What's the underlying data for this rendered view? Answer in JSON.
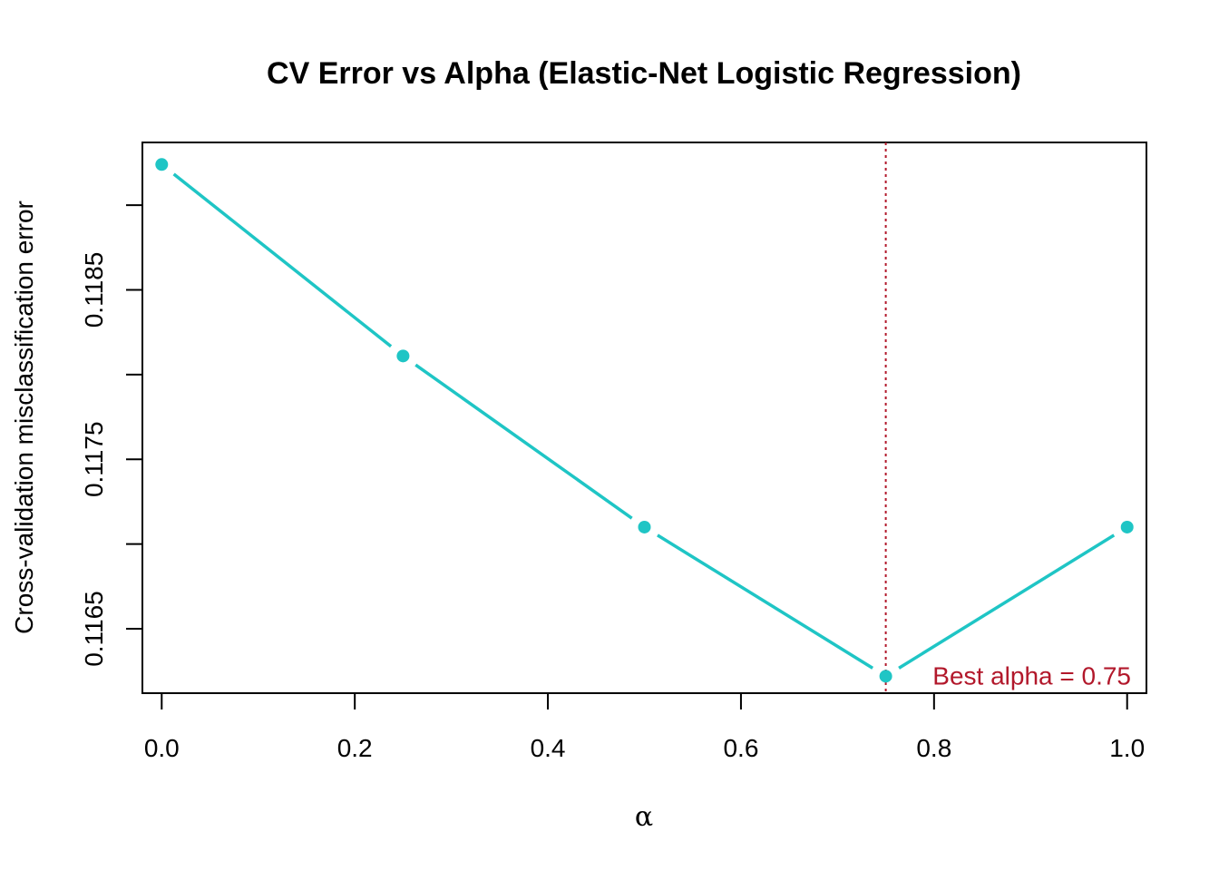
{
  "chart_data": {
    "type": "line",
    "title": "CV Error vs Alpha (Elastic-Net Logistic Regression)",
    "xlabel": "α",
    "ylabel": "Cross-validation misclassification error",
    "x": [
      0.0,
      0.25,
      0.5,
      0.75,
      1.0
    ],
    "series": [
      {
        "values": [
          0.11924,
          0.11811,
          0.1171,
          0.11622,
          0.1171
        ],
        "color": "#1fc5c5"
      }
    ],
    "xlim": [
      -0.02,
      1.02
    ],
    "ylim": [
      0.11612,
      0.11937
    ],
    "x_ticks": [
      0.0,
      0.2,
      0.4,
      0.6,
      0.8,
      1.0
    ],
    "x_tick_labels": [
      "0.0",
      "0.2",
      "0.4",
      "0.6",
      "0.8",
      "1.0"
    ],
    "y_ticks": [
      0.1165,
      0.117,
      0.1175,
      0.118,
      0.1185,
      0.119
    ],
    "y_tick_labels": [
      "0.1165",
      "",
      "0.1175",
      "",
      "0.1185",
      ""
    ],
    "best_alpha": 0.75,
    "vline_color": "#b2182b",
    "annotation": "Best alpha = 0.75",
    "annotation_color": "#b2182b",
    "grid": false,
    "legend": "none"
  }
}
